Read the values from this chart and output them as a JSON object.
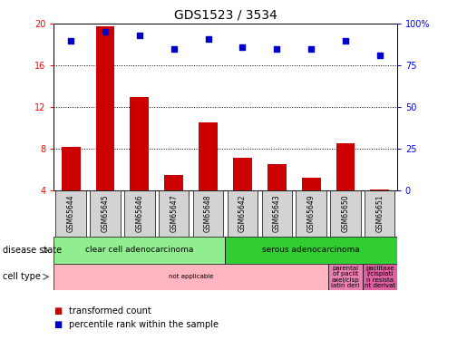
{
  "title": "GDS1523 / 3534",
  "samples": [
    "GSM65644",
    "GSM65645",
    "GSM65646",
    "GSM65647",
    "GSM65648",
    "GSM65642",
    "GSM65643",
    "GSM65649",
    "GSM65650",
    "GSM65651"
  ],
  "bar_values": [
    8.2,
    19.8,
    13.0,
    5.5,
    10.5,
    7.1,
    6.5,
    5.2,
    8.5,
    4.1
  ],
  "scatter_values_pct": [
    90,
    95,
    93,
    85,
    91,
    86,
    85,
    85,
    90,
    81
  ],
  "ylim_left": [
    4,
    20
  ],
  "ylim_right": [
    0,
    100
  ],
  "yticks_left": [
    4,
    8,
    12,
    16,
    20
  ],
  "yticks_right": [
    0,
    25,
    50,
    75,
    100
  ],
  "bar_color": "#cc0000",
  "scatter_color": "#0000cc",
  "disease_state_groups": [
    {
      "label": "clear cell adenocarcinoma",
      "start": 0,
      "end": 5,
      "color": "#90ee90"
    },
    {
      "label": "serous adenocarcinoma",
      "start": 5,
      "end": 10,
      "color": "#32cd32"
    }
  ],
  "cell_type_groups": [
    {
      "label": "not applicable",
      "start": 0,
      "end": 8,
      "color": "#ffb6c1"
    },
    {
      "label": "parental\nof paclit\naxel/cisp\nlatin deri",
      "start": 8,
      "end": 9,
      "color": "#e880b0"
    },
    {
      "label": "paclitaxe\nl/cisplati\nn resista\nnt derivat",
      "start": 9,
      "end": 10,
      "color": "#dd60a0"
    }
  ],
  "legend_items": [
    {
      "label": "transformed count",
      "color": "#cc0000"
    },
    {
      "label": "percentile rank within the sample",
      "color": "#0000cc"
    }
  ],
  "xlabel_disease": "disease state",
  "xlabel_cell": "cell type",
  "tick_fontsize": 7,
  "title_fontsize": 10,
  "bar_width": 0.55,
  "sample_box_color": "#d3d3d3",
  "sample_fontsize": 5.5,
  "band_fontsize": 6.5,
  "cell_fontsize": 5.0
}
